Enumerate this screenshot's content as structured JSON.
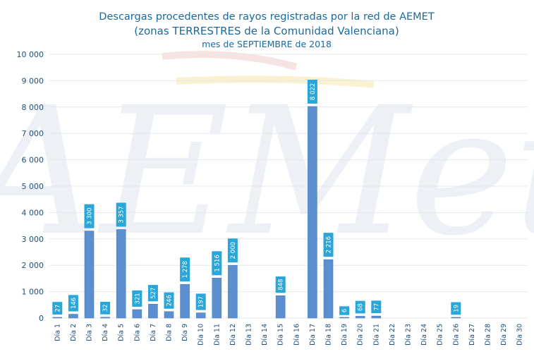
{
  "colors": {
    "bar": "#5b8fcf",
    "bar_stroke": "#4a7fc0",
    "label_box": "#2aa6d9",
    "title": "#1a6aa0",
    "axis_text": "#1f4e79",
    "grid": "#e4e8ee",
    "watermark_red": "#e9b3ad",
    "watermark_yellow": "#f4df9a",
    "watermark_blue": "#dfe6ee"
  },
  "watermark_text": "AEMet",
  "chart_data": {
    "type": "bar",
    "title": [
      "Descargas procedentes de rayos registradas por la red de AEMET",
      "(zonas TERRESTRES de la Comunidad Valenciana)",
      "mes de SEPTIEMBRE de 2018"
    ],
    "xlabel": "",
    "ylabel": "",
    "ylim": [
      0,
      10000
    ],
    "yticks": [
      0,
      1000,
      2000,
      3000,
      4000,
      5000,
      6000,
      7000,
      8000,
      9000,
      10000
    ],
    "ytick_labels": [
      "0",
      "1 000",
      "2 000",
      "3 000",
      "4 000",
      "5 000",
      "6 000",
      "7 000",
      "8 000",
      "9 000",
      "10 000"
    ],
    "grid": true,
    "legend": "none",
    "categories": [
      "Día 1",
      "Día 2",
      "Día 3",
      "Día 4",
      "Día 5",
      "Día 6",
      "Día 7",
      "Día 8",
      "Día 9",
      "Día 10",
      "Día 11",
      "Día 12",
      "Día 13",
      "Día 14",
      "Día 15",
      "Día 16",
      "Día 17",
      "Día 18",
      "Día 19",
      "Día 20",
      "Día 21",
      "Día 22",
      "Día 23",
      "Día 24",
      "Día 25",
      "Día 26",
      "Día 27",
      "Día 28",
      "Día 29",
      "Día 30"
    ],
    "values": [
      27,
      146,
      3300,
      32,
      3357,
      321,
      527,
      246,
      1278,
      197,
      1516,
      2000,
      0,
      0,
      848,
      0,
      8022,
      2216,
      6,
      68,
      77,
      0,
      0,
      0,
      0,
      19,
      0,
      0,
      0,
      0
    ],
    "data_labels": [
      "27",
      "146",
      "3 300",
      "32",
      "3 357",
      "321",
      "527",
      "246",
      "1 278",
      "197",
      "1 516",
      "2 000",
      "",
      "",
      "848",
      "",
      "8 022",
      "2 216",
      "6",
      "68",
      "77",
      "",
      "",
      "",
      "",
      "19",
      "",
      "",
      "",
      ""
    ]
  }
}
